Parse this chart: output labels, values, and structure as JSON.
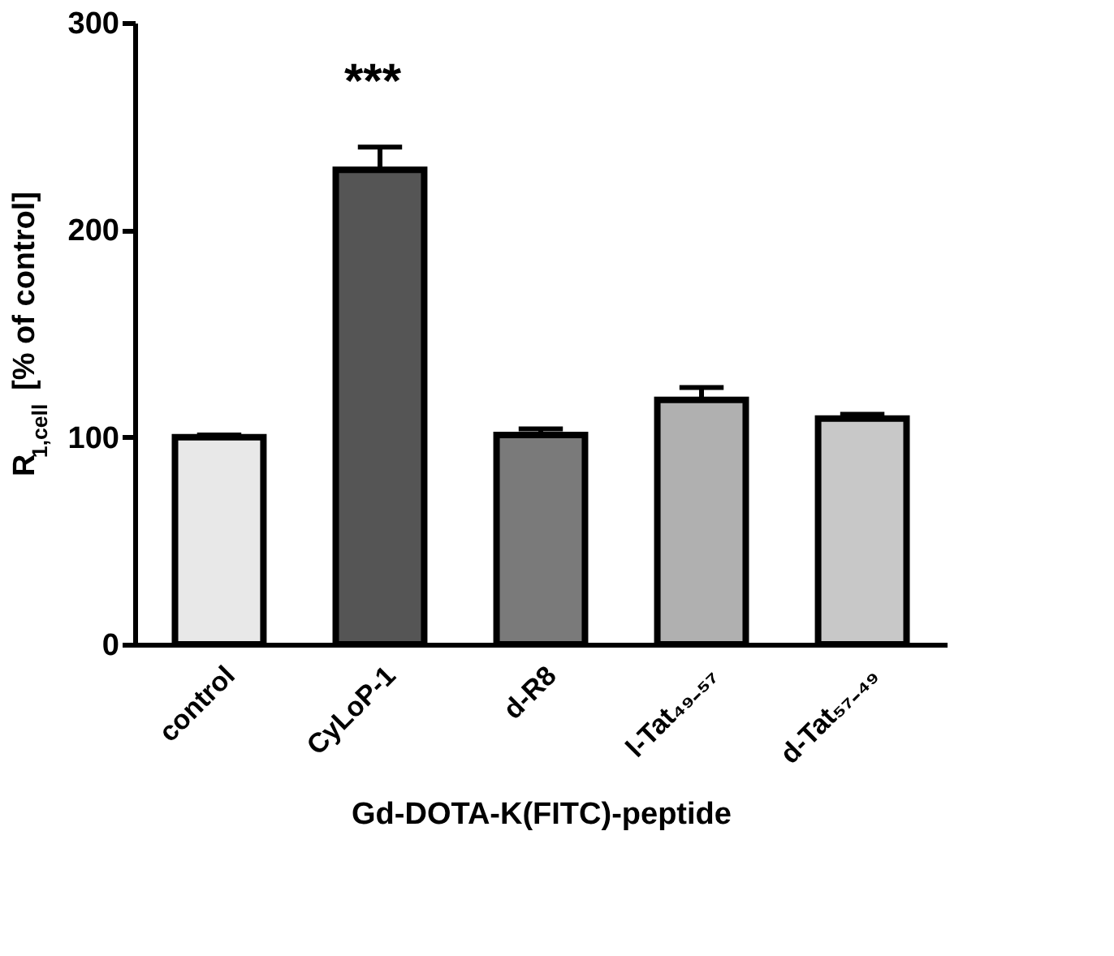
{
  "chart_data": {
    "type": "bar",
    "categories": [
      "control",
      "CyLoP-1",
      "d-R8",
      "l-Tat₄₉₋₅₇",
      "d-Tat₅₇₋₄₉"
    ],
    "values": [
      100,
      229,
      101,
      118,
      109
    ],
    "errors": [
      1,
      11,
      3,
      6,
      2
    ],
    "colors": [
      "#e8e8e8",
      "#555555",
      "#7a7a7a",
      "#b0b0b0",
      "#c8c8c8"
    ],
    "xlabel": "Gd-DOTA-K(FITC)-peptide",
    "ylabel": "R$_{1,cell}$ [% of control]",
    "ylim": [
      0,
      300
    ],
    "yticks": [
      0,
      100,
      200,
      300
    ],
    "grid": false,
    "annotations": [
      "***"
    ]
  }
}
